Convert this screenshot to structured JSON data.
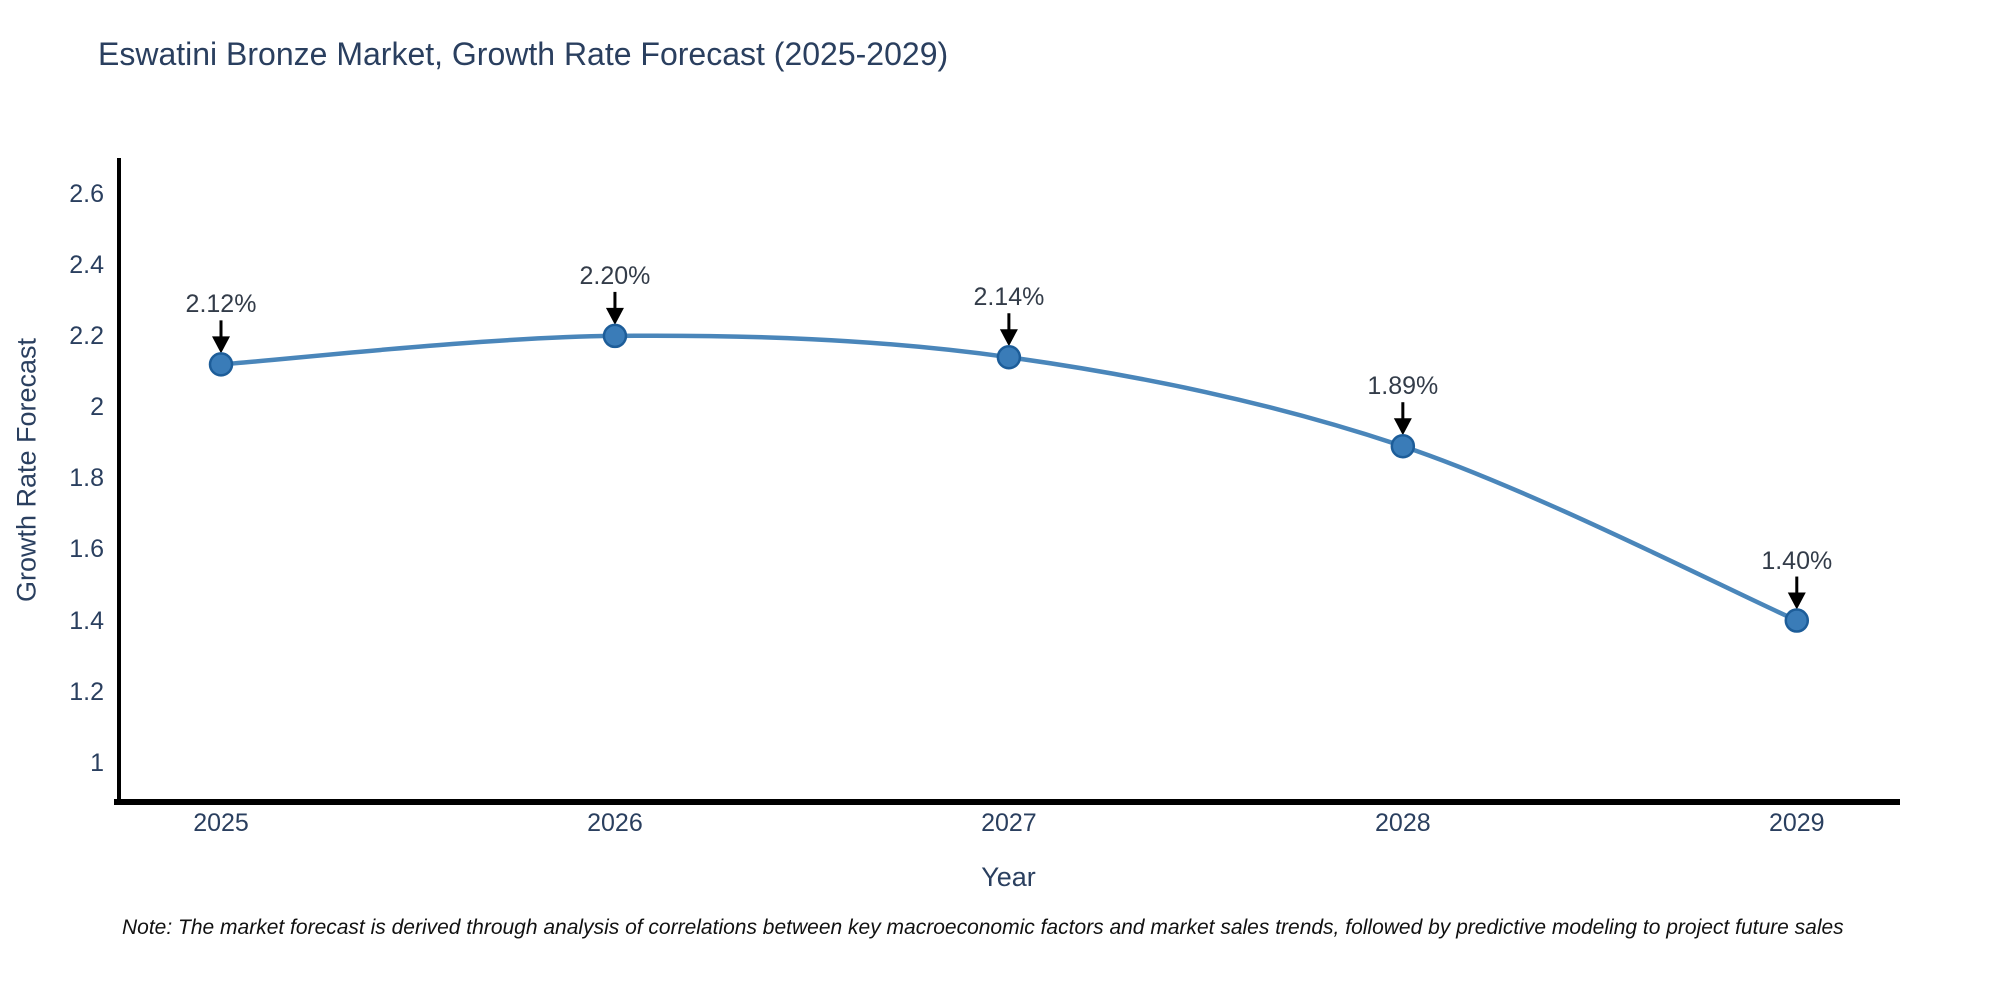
{
  "title": "Eswatini Bronze Market, Growth Rate Forecast (2025-2029)",
  "note": "Note: The market forecast is derived through analysis of correlations between key macroeconomic factors and market sales trends, followed by predictive modeling to project future sales",
  "chart_data": {
    "type": "line",
    "title": "Eswatini Bronze Market, Growth Rate Forecast (2025-2029)",
    "xlabel": "Year",
    "ylabel": "Growth Rate Forecast",
    "line_shape": "spline",
    "grid": false,
    "legend": "none",
    "x": [
      2025,
      2026,
      2027,
      2028,
      2029
    ],
    "y": [
      2.12,
      2.2,
      2.14,
      1.89,
      1.4
    ],
    "point_labels": [
      "2.12%",
      "2.20%",
      "2.14%",
      "1.89%",
      "1.40%"
    ],
    "x_tick_labels": [
      "2025",
      "2026",
      "2027",
      "2028",
      "2029"
    ],
    "y_ticks": [
      1,
      1.2,
      1.4,
      1.6,
      1.8,
      2,
      2.2,
      2.4,
      2.6
    ],
    "y_tick_labels": [
      "1",
      "1.2",
      "1.4",
      "1.6",
      "1.8",
      "2",
      "2.2",
      "2.4",
      "2.6"
    ],
    "xlim": [
      2024.736,
      2029.262
    ],
    "ylim": [
      0.89,
      2.7
    ],
    "colors": {
      "line": "#4a86ba",
      "marker_fill": "#3a7cb8",
      "marker_edge": "#1d5d99",
      "axis": "#000000",
      "tick_text": "#2a3f5f",
      "annotation_text": "#333c49",
      "arrow": "#000000",
      "background": "#ffffff"
    }
  }
}
